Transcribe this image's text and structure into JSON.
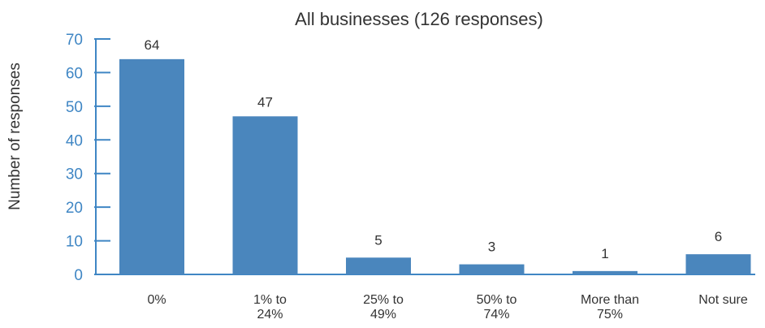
{
  "chart_data": {
    "type": "bar",
    "title": "All businesses (126 responses)",
    "xlabel": "",
    "ylabel": "Number of responses",
    "categories": [
      [
        "0%"
      ],
      [
        "1% to",
        "24%"
      ],
      [
        "25% to",
        "49%"
      ],
      [
        "50% to",
        "74%"
      ],
      [
        "More than",
        "75%"
      ],
      [
        "Not sure"
      ]
    ],
    "values": [
      64,
      47,
      5,
      3,
      1,
      6
    ],
    "ylim": [
      0,
      70
    ],
    "yticks": [
      0,
      10,
      20,
      30,
      40,
      50,
      60,
      70
    ],
    "grid": false,
    "legend": "none",
    "data_labels": true
  },
  "colors": {
    "bar": "#4a86bd",
    "axis": "#3f86c4",
    "text": "#333333"
  }
}
